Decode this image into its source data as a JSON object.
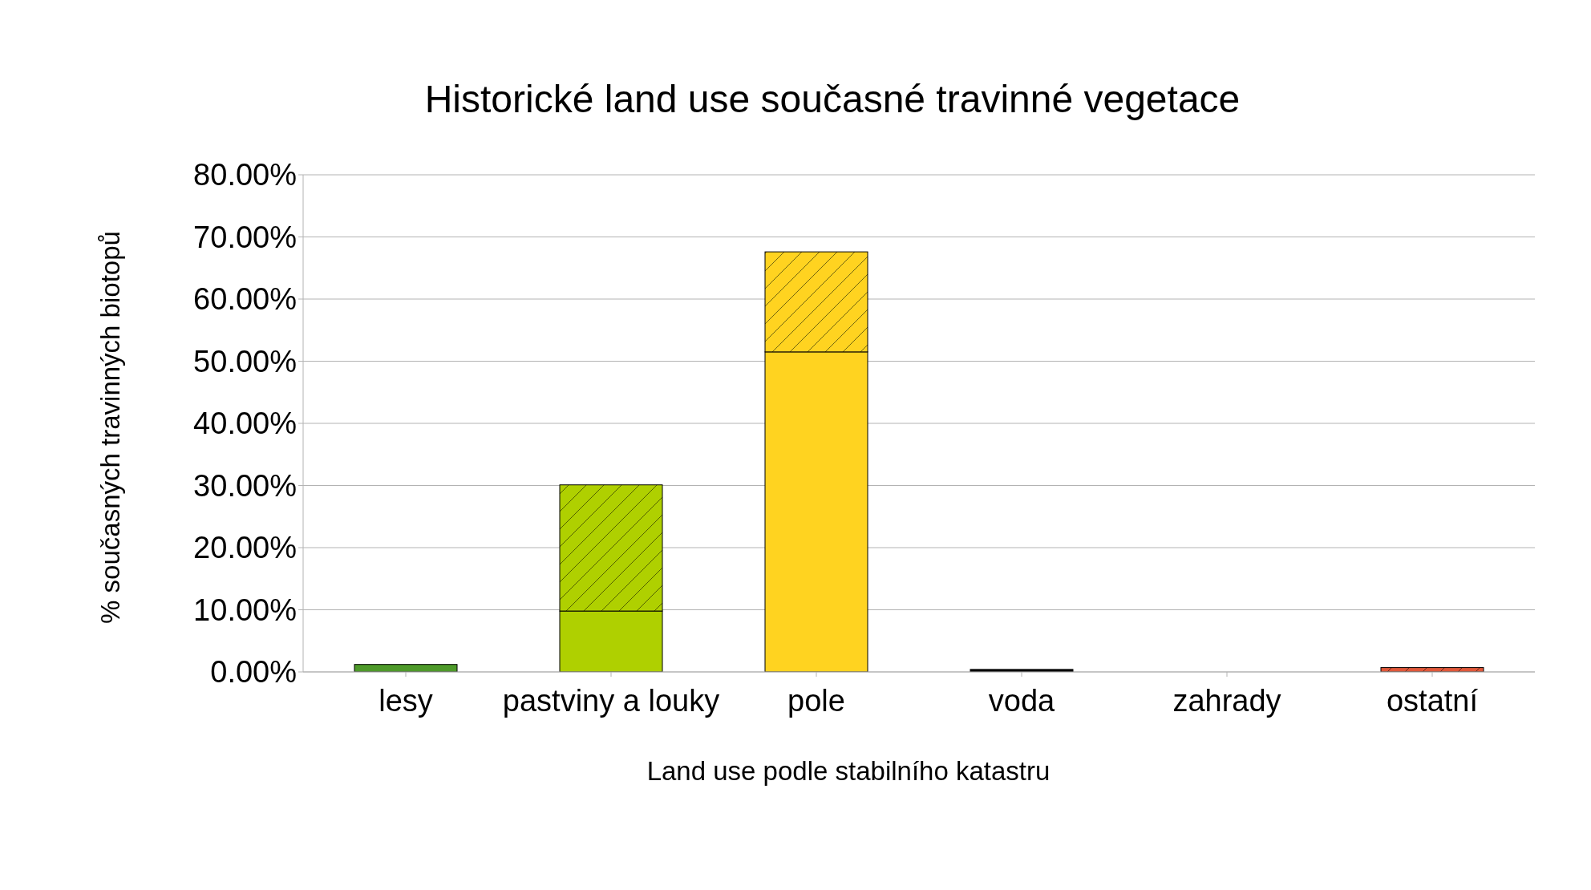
{
  "chart_data": {
    "type": "bar",
    "title": "Historické land use současné travinné vegetace",
    "xlabel": "Land use podle stabilního katastru",
    "ylabel": "% současných travinných biotopů",
    "categories": [
      "lesy",
      "pastviny a louky",
      "pole",
      "voda",
      "zahrady",
      "ostatní"
    ],
    "stacked": true,
    "series": [
      {
        "colors": [
          "#4e9a2a",
          "#afd000",
          "#ffd320",
          "#000000",
          "#aaaaaa",
          "#e0583a"
        ],
        "values": [
          1.2,
          9.8,
          51.5,
          0.4,
          0,
          0
        ]
      },
      {
        "colors": [
          "#4e9a2a",
          "#afd000",
          "#ffd320",
          "#000000",
          "#aaaaaa",
          "#e0583a"
        ],
        "values": [
          0,
          20.3,
          16.1,
          0,
          0,
          0.7
        ]
      }
    ],
    "ylim": [
      0,
      80
    ],
    "yticks": [
      {
        "value": 0,
        "label": "0.00%"
      },
      {
        "value": 10,
        "label": "10.00%"
      },
      {
        "value": 20,
        "label": "20.00%"
      },
      {
        "value": 30,
        "label": "30.00%"
      },
      {
        "value": 40,
        "label": "40.00%"
      },
      {
        "value": 50,
        "label": "50.00%"
      },
      {
        "value": 60,
        "label": "60.00%"
      },
      {
        "value": 70,
        "label": "70.00%"
      },
      {
        "value": 80,
        "label": "80.00%"
      }
    ],
    "grid": "y",
    "legend": false
  }
}
